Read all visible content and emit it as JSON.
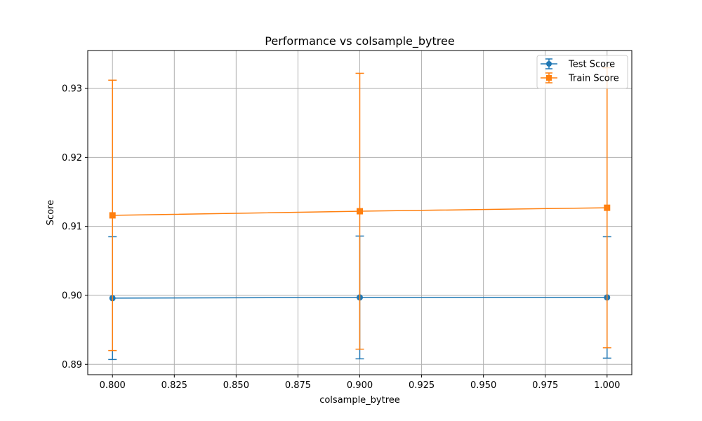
{
  "chart_data": {
    "type": "line",
    "title": "Performance vs colsample_bytree",
    "xlabel": "colsample_bytree",
    "ylabel": "Score",
    "xlim": [
      0.79,
      1.01
    ],
    "ylim": [
      0.8885,
      0.9355
    ],
    "xticks": [
      0.8,
      0.825,
      0.85,
      0.875,
      0.9,
      0.925,
      0.95,
      0.975,
      1.0
    ],
    "xtick_labels": [
      "0.800",
      "0.825",
      "0.850",
      "0.875",
      "0.900",
      "0.925",
      "0.950",
      "0.975",
      "1.000"
    ],
    "yticks": [
      0.89,
      0.9,
      0.91,
      0.92,
      0.93
    ],
    "ytick_labels": [
      "0.89",
      "0.90",
      "0.91",
      "0.92",
      "0.93"
    ],
    "grid": true,
    "legend_position": "top-right",
    "x": [
      0.8,
      0.9,
      1.0
    ],
    "series": [
      {
        "name": "Test Score",
        "marker": "circle",
        "color": "#1f77b4",
        "values": [
          0.8996,
          0.8997,
          0.8997
        ],
        "errors": [
          0.0089,
          0.0089,
          0.0088
        ]
      },
      {
        "name": "Train Score",
        "marker": "square",
        "color": "#ff7f0e",
        "values": [
          0.9116,
          0.9122,
          0.9127
        ],
        "errors": [
          0.0196,
          0.02,
          0.0203
        ]
      }
    ]
  }
}
